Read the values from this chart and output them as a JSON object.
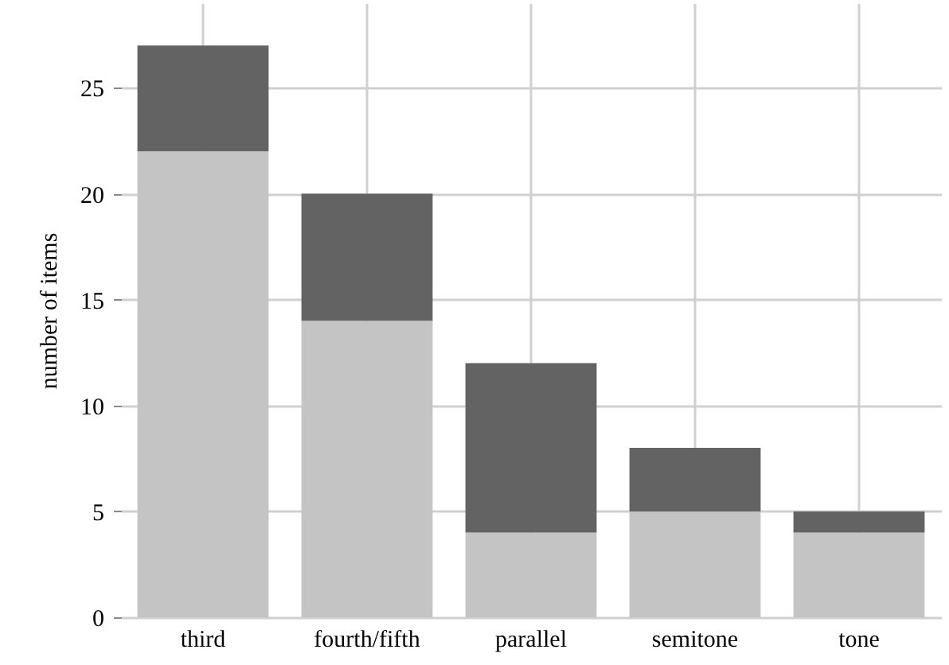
{
  "chart_data": {
    "type": "bar",
    "ylabel": "number of items",
    "categories": [
      "third",
      "fourth/fifth",
      "parallel",
      "semitone",
      "tone"
    ],
    "series": [
      {
        "color": "#c4c4c4",
        "values": [
          22,
          14,
          4,
          5,
          4
        ]
      },
      {
        "color": "#636363",
        "values": [
          5,
          6,
          8,
          3,
          1
        ]
      }
    ],
    "stacked": true,
    "ylim": [
      0,
      29
    ],
    "yticks": [
      0,
      5,
      10,
      15,
      20,
      25
    ],
    "grid": true
  }
}
